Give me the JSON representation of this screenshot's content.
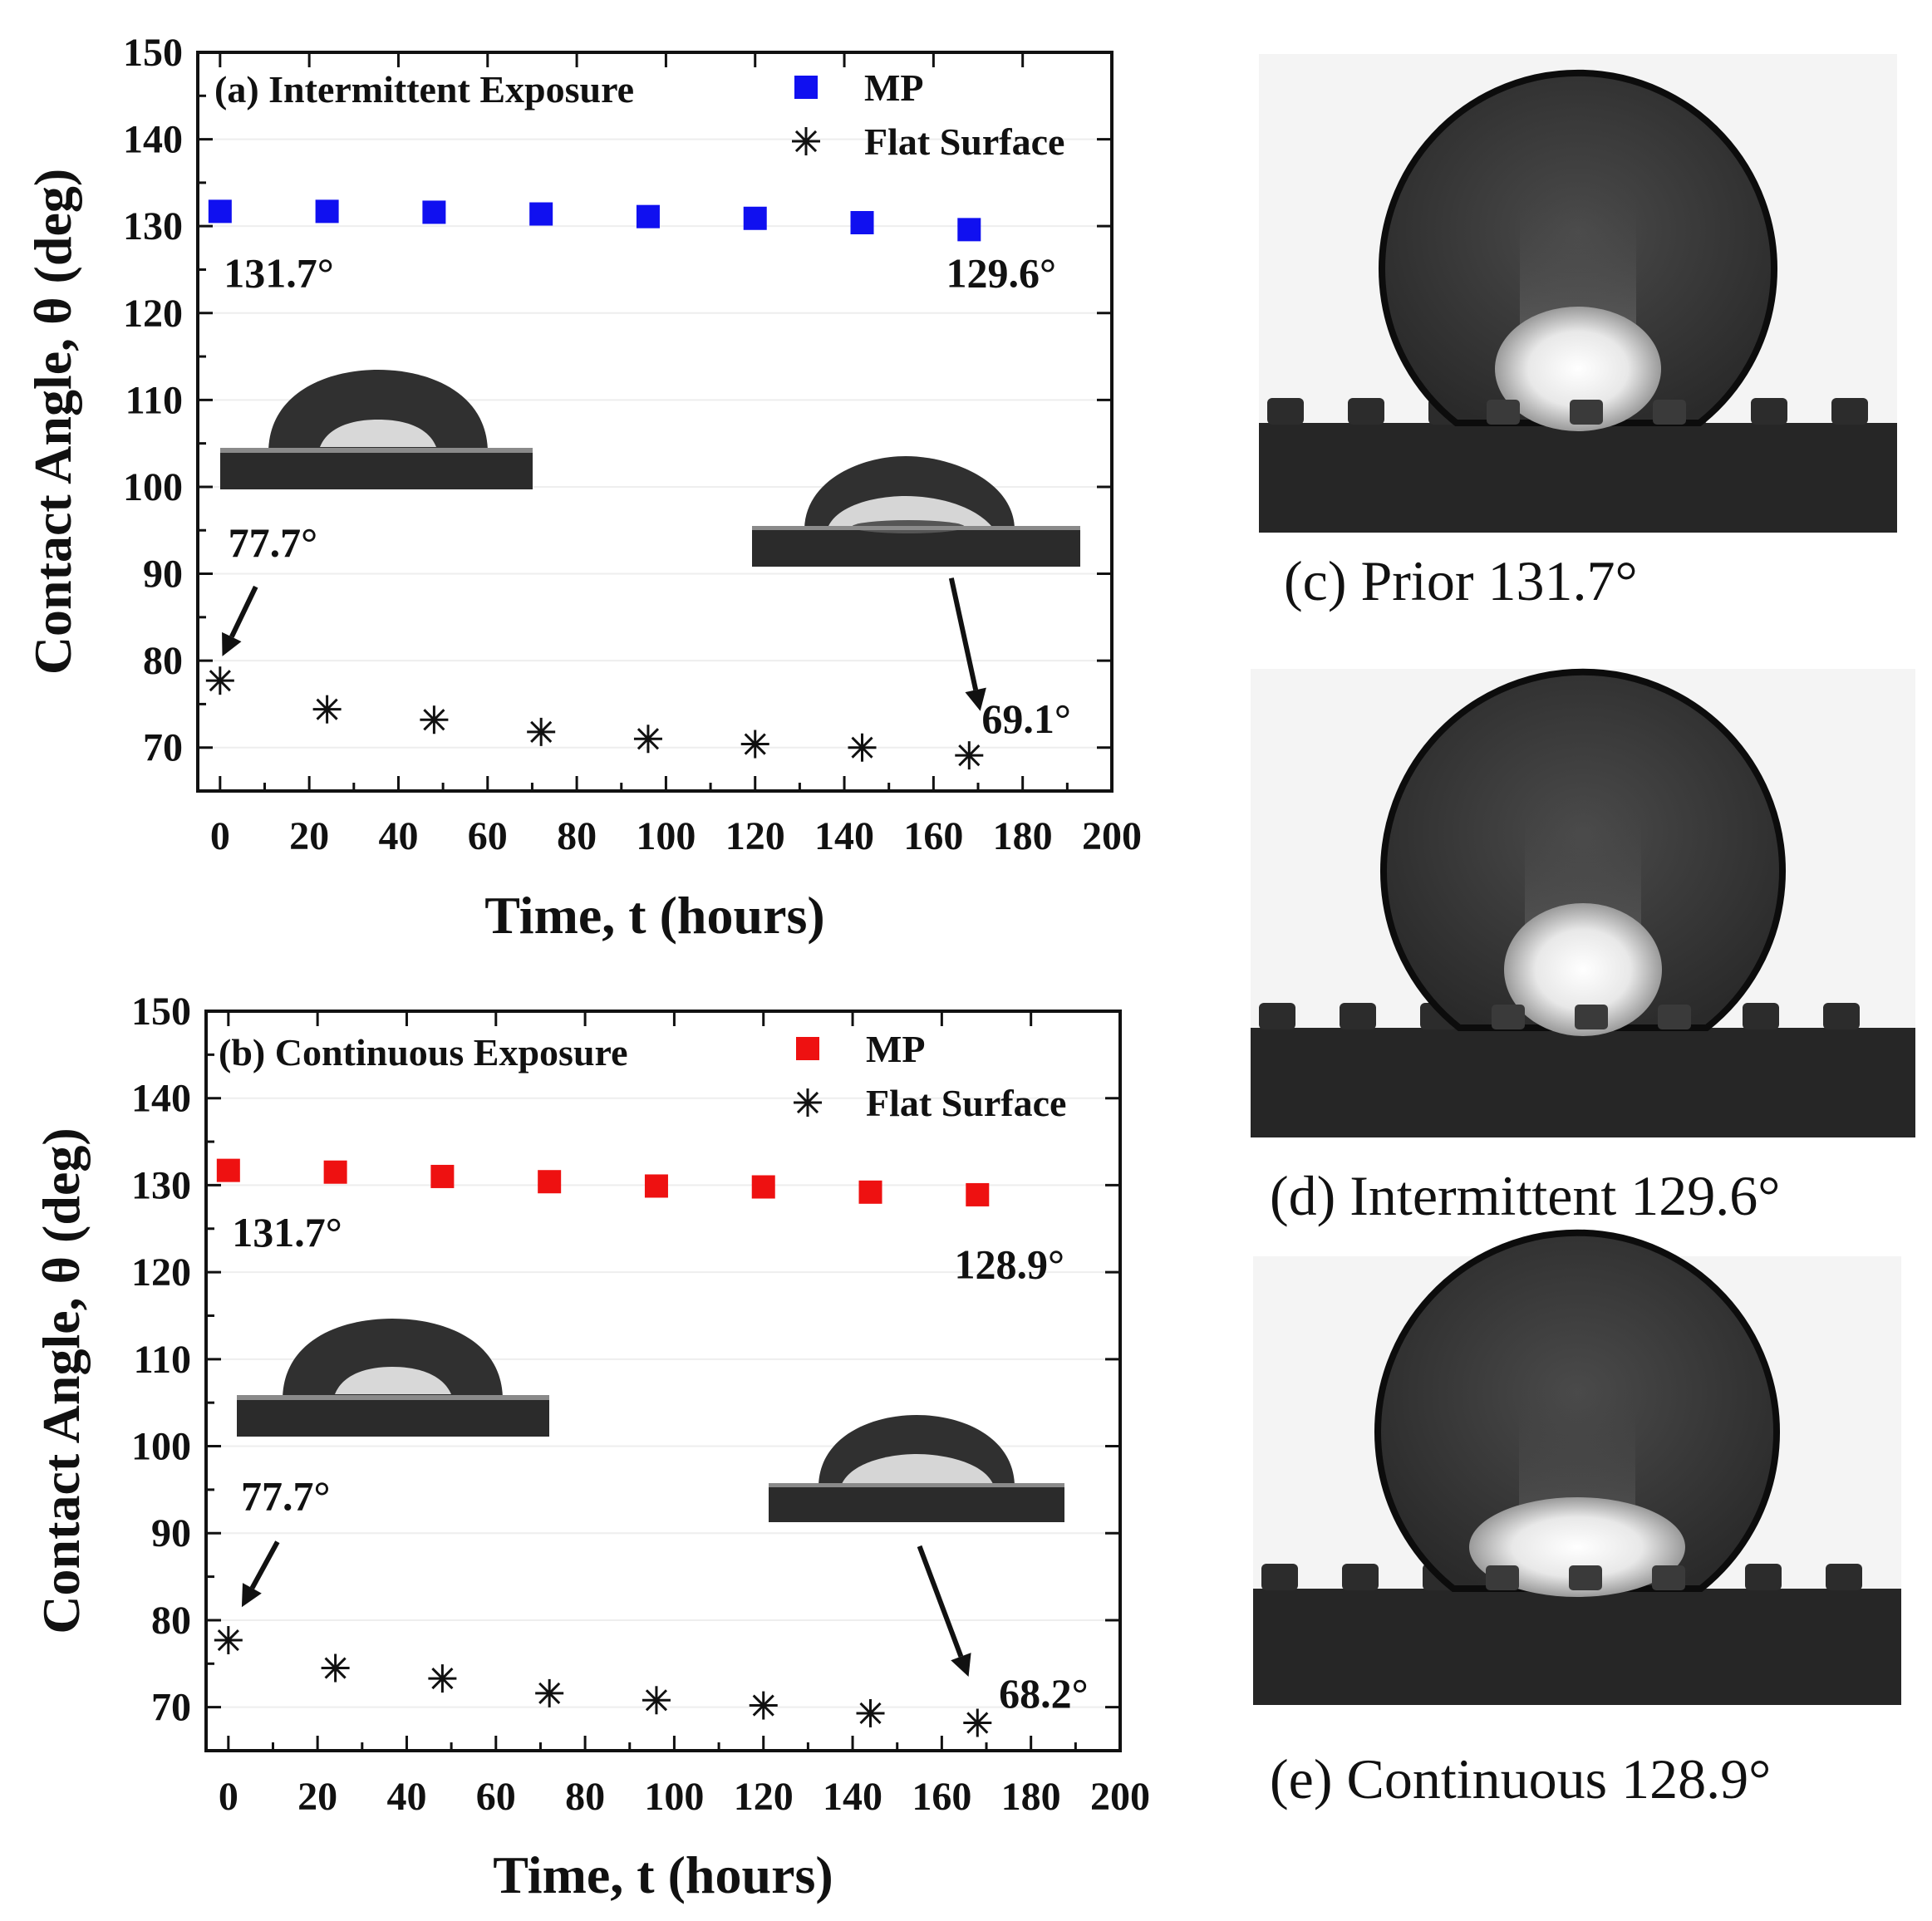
{
  "chart_data": [
    {
      "id": "a",
      "type": "scatter",
      "title": "(a) Intermittent Exposure",
      "xlabel": "Time, t (hours)",
      "ylabel": "Contact Angle, θ (deg)",
      "xlim": [
        -5,
        200
      ],
      "ylim": [
        65,
        150
      ],
      "xticks": [
        0,
        20,
        40,
        60,
        80,
        100,
        120,
        140,
        160,
        180,
        200
      ],
      "yticks": [
        70,
        80,
        90,
        100,
        110,
        120,
        130,
        140,
        150
      ],
      "legend": [
        {
          "label": "MP",
          "marker": "square",
          "color": "#1010f0"
        },
        {
          "label": "Flat Surface",
          "marker": "asterisk",
          "color": "#111111"
        }
      ],
      "series": [
        {
          "name": "MP",
          "marker": "square",
          "color": "#1010f0",
          "x": [
            0,
            24,
            48,
            72,
            96,
            120,
            144,
            168
          ],
          "y": [
            131.7,
            131.7,
            131.6,
            131.4,
            131.1,
            130.9,
            130.4,
            129.6
          ]
        },
        {
          "name": "Flat Surface",
          "marker": "asterisk",
          "color": "#111111",
          "x": [
            0,
            24,
            48,
            72,
            96,
            120,
            144,
            168
          ],
          "y": [
            77.7,
            74.4,
            73.2,
            71.8,
            71.0,
            70.4,
            70.0,
            69.1
          ]
        }
      ],
      "annotations": [
        {
          "text": "131.7°",
          "x": 12,
          "y": 124.5
        },
        {
          "text": "129.6°",
          "x": 174,
          "y": 124.5
        },
        {
          "text": "77.7°",
          "x": 13,
          "y": 93.5
        },
        {
          "text": "69.1°",
          "x": 182,
          "y": 73.2
        }
      ],
      "arrows": [
        {
          "from": [
            8,
            88.5
          ],
          "to": [
            0.5,
            80.5
          ]
        },
        {
          "from": [
            164,
            89.5
          ],
          "to": [
            170.5,
            74.2
          ]
        }
      ]
    },
    {
      "id": "b",
      "type": "scatter",
      "title": "(b) Continuous Exposure",
      "xlabel": "Time, t (hours)",
      "ylabel": "Contact Angle, θ (deg)",
      "xlim": [
        -5,
        200
      ],
      "ylim": [
        65,
        150
      ],
      "xticks": [
        0,
        20,
        40,
        60,
        80,
        100,
        120,
        140,
        160,
        180,
        200
      ],
      "yticks": [
        70,
        80,
        90,
        100,
        110,
        120,
        130,
        140,
        150
      ],
      "legend": [
        {
          "label": "MP",
          "marker": "square",
          "color": "#ee1111"
        },
        {
          "label": "Flat Surface",
          "marker": "asterisk",
          "color": "#111111"
        }
      ],
      "series": [
        {
          "name": "MP",
          "marker": "square",
          "color": "#ee1111",
          "x": [
            0,
            24,
            48,
            72,
            96,
            120,
            144,
            168
          ],
          "y": [
            131.7,
            131.5,
            131.0,
            130.4,
            129.9,
            129.8,
            129.2,
            128.9
          ]
        },
        {
          "name": "Flat Surface",
          "marker": "asterisk",
          "color": "#111111",
          "x": [
            0,
            24,
            48,
            72,
            96,
            120,
            144,
            168
          ],
          "y": [
            77.7,
            74.5,
            73.3,
            71.6,
            70.8,
            70.2,
            69.3,
            68.2
          ]
        }
      ],
      "annotations": [
        {
          "text": "131.7°",
          "x": 12,
          "y": 124.5
        },
        {
          "text": "128.9°",
          "x": 174,
          "y": 120.8
        },
        {
          "text": "77.7°",
          "x": 14,
          "y": 94.2
        },
        {
          "text": "68.2°",
          "x": 184,
          "y": 71.5
        }
      ],
      "arrows": [
        {
          "from": [
            11,
            89
          ],
          "to": [
            3,
            81.5
          ]
        },
        {
          "from": [
            155,
            88.5
          ],
          "to": [
            166,
            73.5
          ]
        }
      ]
    }
  ],
  "photos": [
    {
      "label": "(c) Prior 131.7°",
      "contact_angle_deg": 131.7
    },
    {
      "label": "(d) Intermittent 129.6°",
      "contact_angle_deg": 129.6
    },
    {
      "label": "(e) Continuous 128.9°",
      "contact_angle_deg": 128.9
    }
  ]
}
